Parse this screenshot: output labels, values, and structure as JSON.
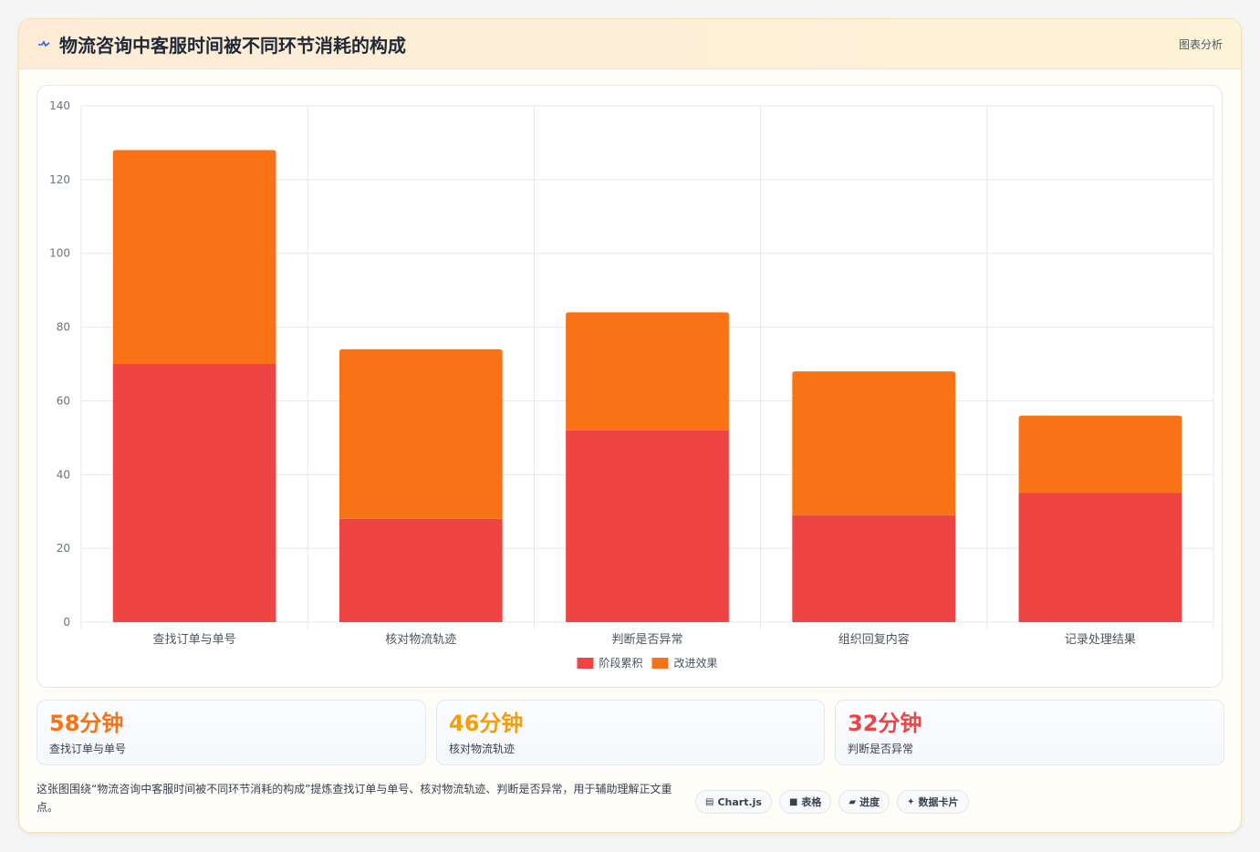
{
  "header": {
    "title": "物流咨询中客服时间被不同环节消耗的构成",
    "tag": "图表分析"
  },
  "chart_data": {
    "type": "bar",
    "stacked": true,
    "categories": [
      "查找订单与单号",
      "核对物流轨迹",
      "判断是否异常",
      "组织回复内容",
      "记录处理结果"
    ],
    "series": [
      {
        "name": "阶段累积",
        "color": "#ef4444",
        "values": [
          70,
          28,
          52,
          29,
          35
        ]
      },
      {
        "name": "改进效果",
        "color": "#f97316",
        "values": [
          58,
          46,
          32,
          39,
          21
        ]
      }
    ],
    "ylim": [
      0,
      140
    ],
    "yticks": [
      0,
      20,
      40,
      60,
      80,
      100,
      120,
      140
    ],
    "grid": true,
    "legend": "bottom"
  },
  "stats": [
    {
      "value": "58分钟",
      "label": "查找订单与单号",
      "color": "#f97316"
    },
    {
      "value": "46分钟",
      "label": "核对物流轨迹",
      "color": "#f59e0b"
    },
    {
      "value": "32分钟",
      "label": "判断是否异常",
      "color": "#ef4444"
    }
  ],
  "note": "这张图围绕“物流咨询中客服时间被不同环节消耗的构成”提炼查找订单与单号、核对物流轨迹、判断是否异常，用于辅助理解正文重点。",
  "pills": [
    {
      "icon": "chart-icon",
      "glyph": "▤",
      "label": "Chart.js"
    },
    {
      "icon": "table-icon",
      "glyph": "■",
      "label": "表格"
    },
    {
      "icon": "progress-icon",
      "glyph": "▰",
      "label": "进度"
    },
    {
      "icon": "sparkle-icon",
      "glyph": "✦",
      "label": "数据卡片"
    }
  ]
}
